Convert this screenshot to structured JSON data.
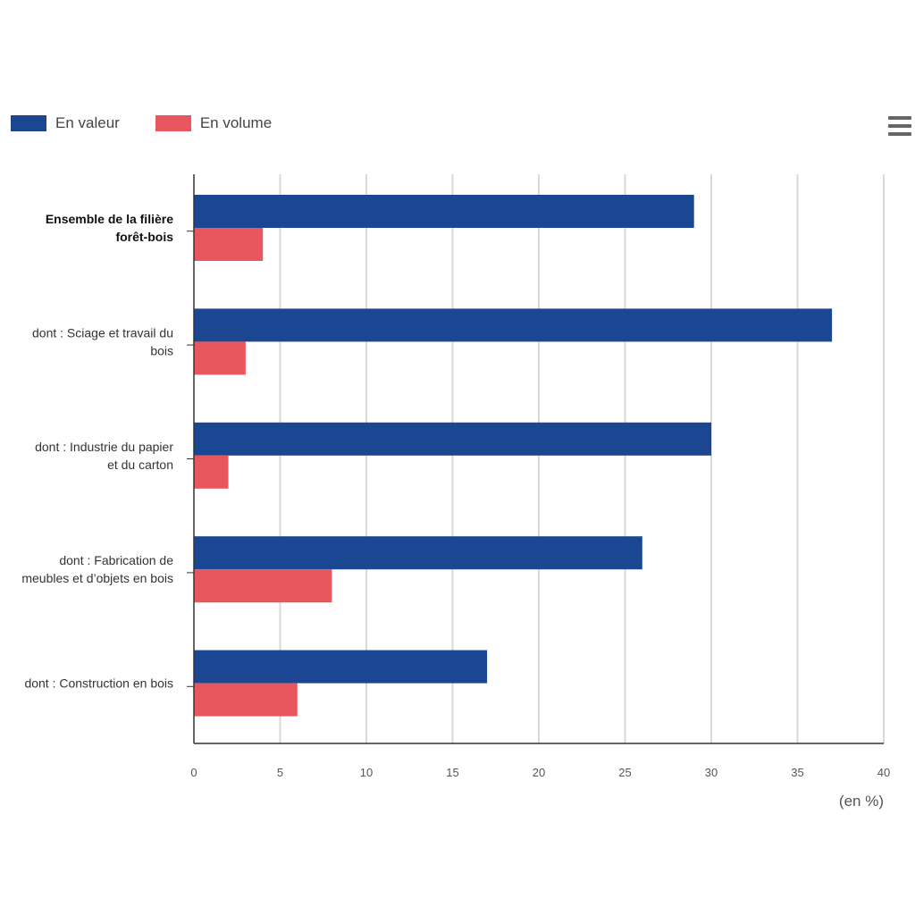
{
  "legend": {
    "series1_label": "En valeur",
    "series2_label": "En volume"
  },
  "menu": {
    "icon": "hamburger-menu-icon"
  },
  "colors": {
    "series1": "#1a4692",
    "series2": "#e8575e",
    "grid": "#d9d9d9",
    "axis": "#333333"
  },
  "chart_data": {
    "type": "bar",
    "orientation": "horizontal",
    "title": "",
    "xlabel": "(en %)",
    "ylabel": "",
    "xlim": [
      0,
      40
    ],
    "ticks": [
      0,
      5,
      10,
      15,
      20,
      25,
      30,
      35,
      40
    ],
    "grid": true,
    "legend_position": "top-left",
    "categories": [
      [
        "Ensemble de la filière",
        "forêt-bois"
      ],
      [
        "dont : Sciage et travail du",
        "bois"
      ],
      [
        "dont : Industrie du papier",
        "et du carton"
      ],
      [
        "dont : Fabrication de",
        "meubles et d’objets en bois"
      ],
      [
        "dont : Construction en bois"
      ]
    ],
    "bold_categories": [
      0
    ],
    "series": [
      {
        "name": "En valeur",
        "values": [
          29,
          37,
          30,
          26,
          17
        ]
      },
      {
        "name": "En volume",
        "values": [
          4,
          3,
          2,
          8,
          6
        ]
      }
    ]
  }
}
